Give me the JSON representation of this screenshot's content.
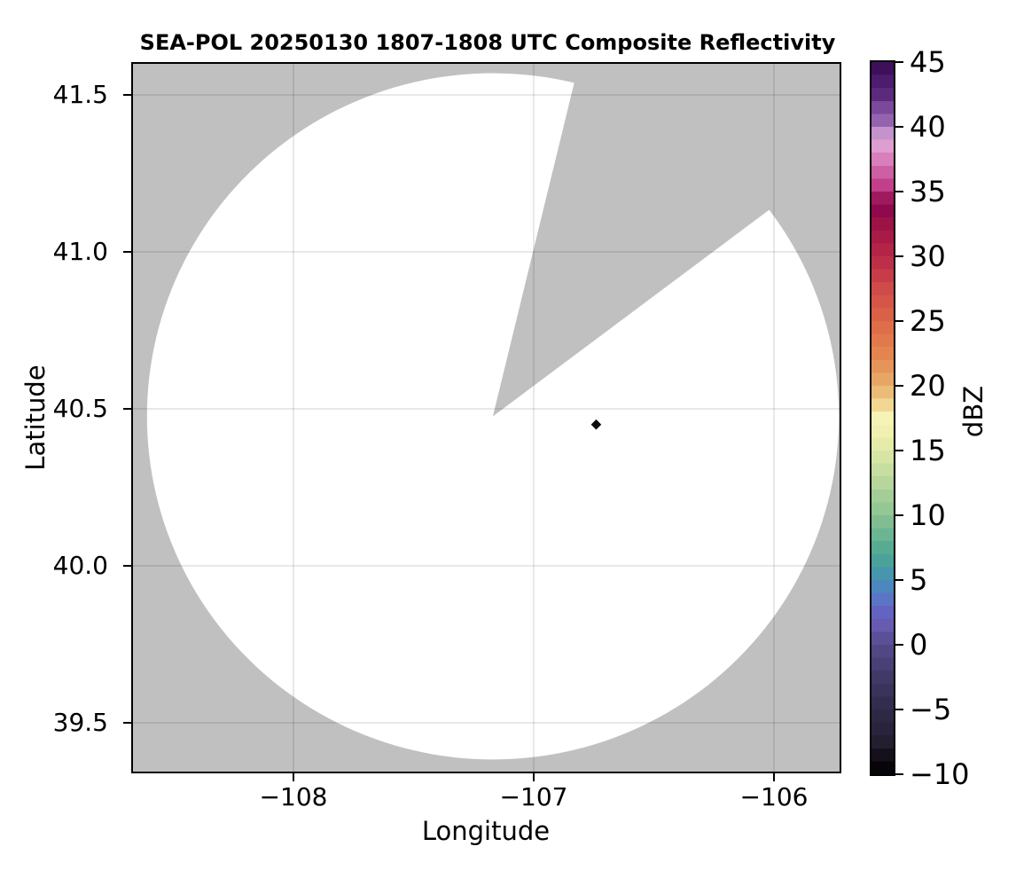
{
  "title": "SEA-POL 20250130 1807-1808 UTC Composite Reflectivity",
  "axes": {
    "xlabel": "Longitude",
    "ylabel": "Latitude",
    "x_ticks": [
      {
        "value": -108,
        "label": "−108"
      },
      {
        "value": -107,
        "label": "−107"
      },
      {
        "value": -106,
        "label": "−106"
      }
    ],
    "y_ticks": [
      {
        "value": 41.5,
        "label": "41.5"
      },
      {
        "value": 41.0,
        "label": "41.0"
      },
      {
        "value": 40.5,
        "label": "40.5"
      },
      {
        "value": 40.0,
        "label": "40.0"
      },
      {
        "value": 39.5,
        "label": "39.5"
      }
    ]
  },
  "colorbar": {
    "label": "dBZ",
    "min": -10,
    "max": 45,
    "ticks": [
      {
        "value": 45,
        "label": "45"
      },
      {
        "value": 40,
        "label": "40"
      },
      {
        "value": 35,
        "label": "35"
      },
      {
        "value": 30,
        "label": "30"
      },
      {
        "value": 25,
        "label": "25"
      },
      {
        "value": 20,
        "label": "20"
      },
      {
        "value": 15,
        "label": "15"
      },
      {
        "value": 10,
        "label": "10"
      },
      {
        "value": 5,
        "label": "5"
      },
      {
        "value": 0,
        "label": "0"
      },
      {
        "value": -5,
        "label": "−5"
      },
      {
        "value": -10,
        "label": "−10"
      }
    ],
    "band_width_dbz": 1
  },
  "plot": {
    "background_color": "#c0c0c0",
    "coverage_color": "#ffffff",
    "gridline_color": "rgba(0,0,0,0.12)",
    "frame_color": "#000000"
  },
  "chart_data": {
    "type": "heatmap",
    "title": "SEA-POL 20250130 1807-1808 UTC Composite Reflectivity",
    "xlabel": "Longitude",
    "ylabel": "Latitude",
    "xlim": [
      -108.68,
      -105.72
    ],
    "ylim": [
      39.34,
      41.61
    ],
    "x_ticks": [
      -108,
      -107,
      -106
    ],
    "y_ticks": [
      39.5,
      40.0,
      40.5,
      41.0,
      41.5
    ],
    "grid": true,
    "colorbar_label": "dBZ",
    "colorbar_range": [
      -10,
      45
    ],
    "colorbar_tick_step": 5,
    "radar": {
      "center_lon": -107.17,
      "center_lat": 40.476,
      "coverage_radius_deg_lon": 1.44,
      "coverage_radius_deg_lat": 1.093,
      "range_km": 122,
      "missing_sector_azimuth_deg": [
        13.6,
        53
      ],
      "coverage_color": "#ffffff",
      "no_coverage_color": "#c0c0c0"
    },
    "echoes": [
      {
        "lon": -106.74,
        "lat": 40.45,
        "dbz": -9,
        "color": "#0b0b10",
        "marker": "diamond"
      }
    ],
    "colormap_name": "spectral-chase-like",
    "colormap_anchors": [
      [
        -10,
        "#000000"
      ],
      [
        -8.5,
        "#15101c"
      ],
      [
        -7.5,
        "#241e31"
      ],
      [
        -5,
        "#302a49"
      ],
      [
        -2.5,
        "#413968"
      ],
      [
        0,
        "#564a8c"
      ],
      [
        1.5,
        "#665bb1"
      ],
      [
        2.5,
        "#6363c1"
      ],
      [
        3.5,
        "#5a75c6"
      ],
      [
        5,
        "#4590b8"
      ],
      [
        6.5,
        "#4aa29b"
      ],
      [
        7.5,
        "#58ab93"
      ],
      [
        10,
        "#8ac391"
      ],
      [
        12.5,
        "#b6d69b"
      ],
      [
        15,
        "#dfe9a6"
      ],
      [
        16.5,
        "#f0f0b0"
      ],
      [
        17.5,
        "#f6f3b6"
      ],
      [
        18.5,
        "#f0d893"
      ],
      [
        20,
        "#e9ae6b"
      ],
      [
        22.5,
        "#e4854f"
      ],
      [
        25,
        "#dd6747"
      ],
      [
        27.5,
        "#cf4b4a"
      ],
      [
        30,
        "#b82847"
      ],
      [
        31.5,
        "#a81b46"
      ],
      [
        32.5,
        "#9d1345"
      ],
      [
        33.75,
        "#8d0750"
      ],
      [
        34.5,
        "#a01a60"
      ],
      [
        35,
        "#bd2f7e"
      ],
      [
        36.5,
        "#cd5fa3"
      ],
      [
        37.5,
        "#d87fbc"
      ],
      [
        38.75,
        "#dfa6d4"
      ],
      [
        39.5,
        "#c493cb"
      ],
      [
        40,
        "#9d6fb8"
      ],
      [
        41,
        "#8a57a8"
      ],
      [
        42.5,
        "#5c2a7d"
      ],
      [
        44,
        "#451568"
      ],
      [
        45,
        "#360a4d"
      ]
    ]
  }
}
